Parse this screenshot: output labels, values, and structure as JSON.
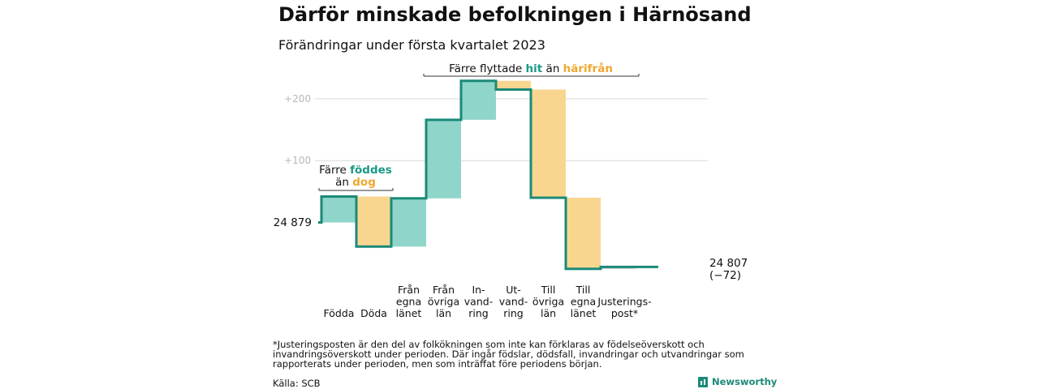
{
  "title": "Därför minskade befolkningen i Härnösand",
  "subtitle": "Förändringar under första kvartalet 2023",
  "footnote": "*Justeringsposten är den del av folkökningen som inte kan förklaras av födelseöverskott och invandringsöverskott under perioden. Där ingår födslar, dödsfall, invandringar och utvandringar som rapporterats under perioden, men som inträffat före periodens början.",
  "source": "Källa: SCB",
  "brand": "Newsworthy",
  "colors": {
    "positive": "#8fd5c9",
    "negative": "#f9d68f",
    "adjustment": "#c9c9c9",
    "line": "#1a8a78",
    "hit": "#1a9a86",
    "harifran": "#f0a830",
    "grid": "#d9d9d9"
  },
  "annotations": {
    "birth_death": {
      "line1_pre": "Färre ",
      "line1_hl": "föddes",
      "line2_pre": "än ",
      "line2_hl": "dog"
    },
    "migration": {
      "pre": "Färre flyttade ",
      "hl1": "hit",
      "mid": " än ",
      "hl2": "härifrån"
    }
  },
  "chart_data": {
    "type": "waterfall",
    "title": "Därför minskade befolkningen i Härnösand",
    "subtitle": "Förändringar under första kvartalet 2023",
    "start_value": 24879,
    "start_label": "24 879",
    "end_value": 24807,
    "end_label": "24 807",
    "end_change_label": "(−72)",
    "y_ticks": [
      {
        "value": 100,
        "label": "+100"
      },
      {
        "value": 200,
        "label": "+200"
      }
    ],
    "ylim": [
      -85,
      215
    ],
    "steps": [
      {
        "category": "Födda",
        "label_lines": [
          "Födda"
        ],
        "change": 42
      },
      {
        "category": "Döda",
        "label_lines": [
          "Döda"
        ],
        "change": -81
      },
      {
        "category": "Från egna länet",
        "label_lines": [
          "Från",
          "egna",
          "länet"
        ],
        "change": 78
      },
      {
        "category": "Från övriga län",
        "label_lines": [
          "Från",
          "övriga",
          "län"
        ],
        "change": 127
      },
      {
        "category": "Invandring",
        "label_lines": [
          "In-",
          "vand-",
          "ring"
        ],
        "change": 63
      },
      {
        "category": "Utvandring",
        "label_lines": [
          "Ut-",
          "vand-",
          "ring"
        ],
        "change": -14
      },
      {
        "category": "Till övriga län",
        "label_lines": [
          "Till",
          "övriga",
          "län"
        ],
        "change": -175
      },
      {
        "category": "Till egna länet",
        "label_lines": [
          "Till",
          "egna",
          "länet"
        ],
        "change": -115
      },
      {
        "category": "Justeringspost*",
        "label_lines": [
          "Justerings-",
          "post*"
        ],
        "change": 3,
        "adjustment": true
      }
    ]
  }
}
